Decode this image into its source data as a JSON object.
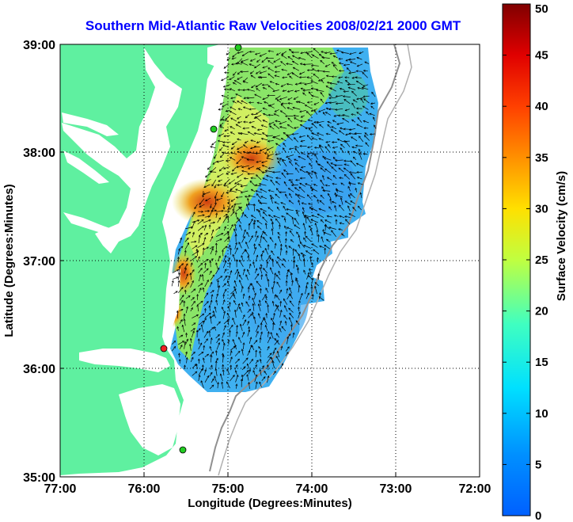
{
  "title": "Southern Mid-Atlantic Raw Velocities 2008/02/21 2000 GMT",
  "map": {
    "xlabel": "Longitude (Degrees:Minutes)",
    "ylabel": "Latitude (Degrees:Minutes)",
    "lon_ticks": [
      "77:00",
      "76:00",
      "75:00",
      "74:00",
      "73:00",
      "72:00"
    ],
    "lat_ticks": [
      "39:00",
      "38:00",
      "37:00",
      "36:00",
      "35:00"
    ],
    "lon_range": [
      -77,
      -72
    ],
    "lat_range": [
      35,
      39
    ],
    "land_color": "#5ff0a0",
    "station_colors": [
      "#22cc22",
      "#22cc22",
      "#ee2222",
      "#22cc22"
    ],
    "station_names": [
      "station-top",
      "station-mid",
      "station-red",
      "station-bottom"
    ]
  },
  "colorbar": {
    "label": "Surface Velocity (cm/s)",
    "ticks": [
      "50",
      "45",
      "40",
      "35",
      "30",
      "25",
      "20",
      "15",
      "10",
      "5",
      "0"
    ],
    "range": [
      0,
      50
    ]
  }
}
